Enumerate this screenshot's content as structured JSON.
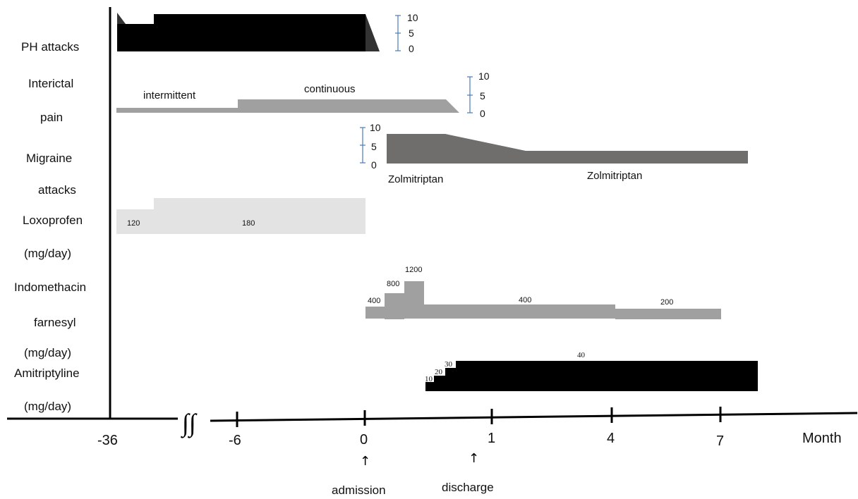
{
  "chart_data": {
    "type": "timeline",
    "row_labels": [
      "PH attacks",
      "Interictal",
      "pain",
      "Migraine",
      "attacks",
      "Loxoprofen",
      "(mg/day)",
      "Indomethacin",
      "farnesyl",
      "(mg/day)",
      "Amitriptyline",
      "(mg/day)"
    ],
    "x_axis": {
      "ticks": [
        "-36",
        "-6",
        "0",
        "1",
        "4",
        "7"
      ],
      "unit_label": "Month",
      "break_symbol": "∫∫"
    },
    "events": [
      {
        "label": "admission",
        "arrow": "↑"
      },
      {
        "label": "discharge",
        "arrow": "↑"
      }
    ],
    "severity_scale": [
      "10",
      "5",
      "0"
    ],
    "interictal_labels": [
      "intermittent",
      "continuous"
    ],
    "migraine_treatment_labels": [
      "Zolmitriptan",
      "Zolmitriptan"
    ],
    "loxoprofen_doses": [
      "120",
      "180"
    ],
    "indomethacin_doses": [
      "400",
      "800",
      "1200",
      "400",
      "200"
    ],
    "amitriptyline_doses": [
      "10",
      "20",
      "30",
      "40"
    ],
    "colors": {
      "ph": "#000000",
      "interictal": "#a0a0a0",
      "migraine": "#706e6d",
      "loxoprofen": "#e3e3e3",
      "indomethacin": "#a0a0a0",
      "amitriptyline": "#000000",
      "scale": "#4a7ab8"
    }
  }
}
